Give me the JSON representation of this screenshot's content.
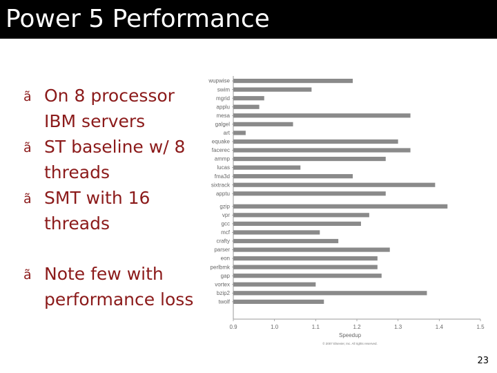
{
  "slide": {
    "title": "Power 5 Performance",
    "page_number": "23",
    "bullet_marker": "ã",
    "bullets": [
      "On 8 processor IBM servers",
      "ST baseline w/ 8 threads",
      "SMT with 16 threads"
    ],
    "note": "Note few with performance loss"
  },
  "chart_data": {
    "type": "bar",
    "orientation": "horizontal",
    "categories": [
      "wupwise",
      "swim",
      "mgrid",
      "applu",
      "mesa",
      "galgel",
      "art",
      "equake",
      "facerec",
      "ammp",
      "lucas",
      "fma3d",
      "sixtrack",
      "apptu",
      "gzip",
      "vpr",
      "gcc",
      "mcf",
      "crafty",
      "parser",
      "eon",
      "perlbmk",
      "gap",
      "vortex",
      "bzip2",
      "twolf"
    ],
    "values": [
      1.19,
      1.09,
      0.975,
      0.963,
      1.33,
      1.045,
      0.93,
      1.3,
      1.33,
      1.27,
      1.063,
      1.19,
      1.39,
      1.27,
      1.42,
      1.23,
      1.21,
      1.11,
      1.155,
      1.28,
      1.25,
      1.25,
      1.26,
      1.1,
      1.37,
      1.12
    ],
    "xlim": [
      0.9,
      1.5
    ],
    "xticks": [
      "0.9",
      "1.0",
      "1.1",
      "1.2",
      "1.3",
      "1.4",
      "1.5"
    ],
    "xlabel": "Speedup",
    "credit": "© 2007 Elsevier, Inc. All rights reserved.",
    "bar_color": "#8a8a8a"
  }
}
